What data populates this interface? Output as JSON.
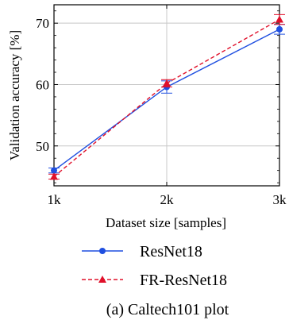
{
  "chart_data": {
    "type": "line",
    "x": [
      "1k",
      "2k",
      "3k"
    ],
    "xlabel": "Dataset size [samples]",
    "ylabel": "Validation accuracy [%]",
    "ylim": [
      43.5,
      73
    ],
    "yticks": [
      50,
      60,
      70
    ],
    "grid": true,
    "legend": "below",
    "series": [
      {
        "name": "ResNet18",
        "values": [
          46.0,
          59.6,
          69.0
        ],
        "errors": [
          0.4,
          1.0,
          0.8
        ],
        "color": "#1f4fe0",
        "linestyle": "solid",
        "marker": "circle"
      },
      {
        "name": "FR-ResNet18",
        "values": [
          45.0,
          60.2,
          70.6
        ],
        "errors": [
          0.4,
          0.6,
          0.8
        ],
        "color": "#e0102a",
        "linestyle": "dashed",
        "marker": "triangle"
      }
    ]
  },
  "caption": "(a) Caltech101 plot"
}
